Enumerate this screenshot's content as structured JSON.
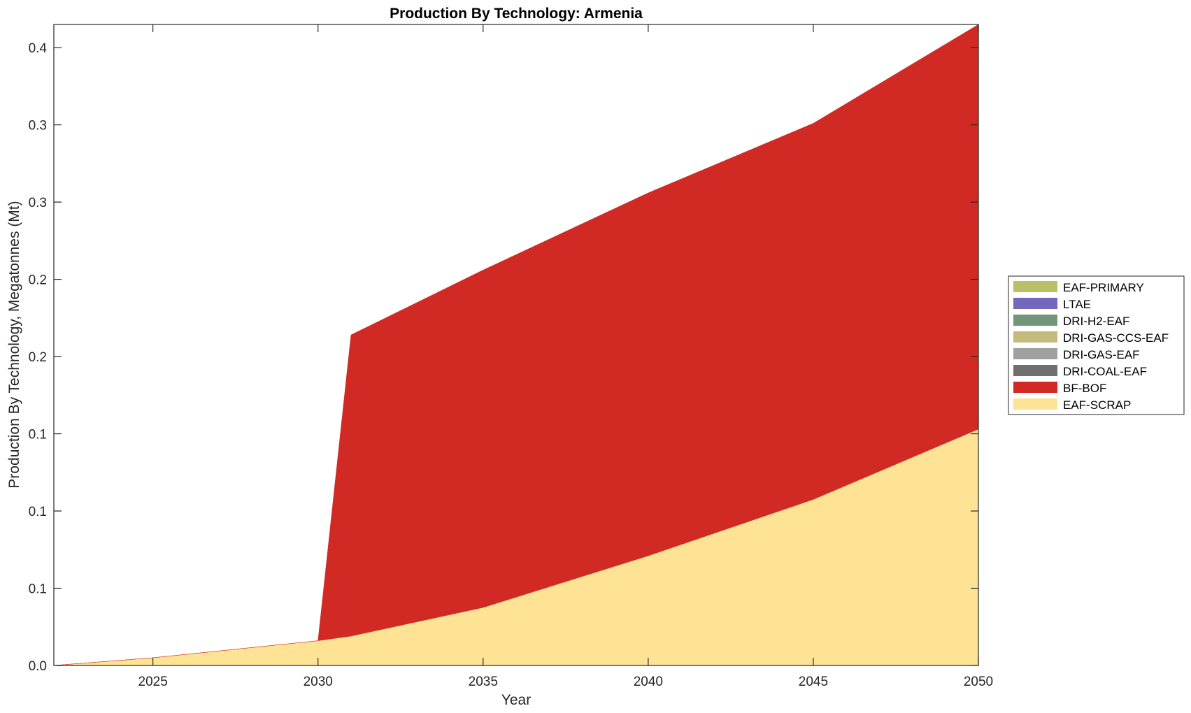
{
  "chart_data": {
    "type": "area",
    "stacked": true,
    "title": "Production By Technology: Armenia",
    "xlabel": "Year",
    "ylabel": "Production By Technology, Megatonnes (Mt)",
    "xlim": [
      2022,
      2050
    ],
    "ylim": [
      0,
      0.415
    ],
    "x_ticks": [
      2025,
      2030,
      2035,
      2040,
      2045,
      2050
    ],
    "y_ticks": [
      0,
      0.05,
      0.1,
      0.15,
      0.2,
      0.25,
      0.3,
      0.35,
      0.4
    ],
    "y_tick_labels": [
      "0.0",
      "0.1",
      "0.1",
      "0.1",
      "0.2",
      "0.2",
      "0.3",
      "0.3",
      "0.4"
    ],
    "legend_position": "right",
    "x": [
      2022,
      2025,
      2030,
      2031,
      2035,
      2040,
      2045,
      2050
    ],
    "series": [
      {
        "name": "EAF-SCRAP",
        "color": "#FFE394",
        "values": [
          0.0,
          0.005,
          0.016,
          0.019,
          0.0375,
          0.071,
          0.1075,
          0.153
        ]
      },
      {
        "name": "BF-BOF",
        "color": "#D12A24",
        "values": [
          0.0,
          0.0,
          0.0,
          0.195,
          0.2185,
          0.235,
          0.2435,
          0.262
        ]
      },
      {
        "name": "DRI-COAL-EAF",
        "color": "#6E6E6E",
        "values": [
          0,
          0,
          0,
          0,
          0,
          0,
          0,
          0
        ]
      },
      {
        "name": "DRI-GAS-EAF",
        "color": "#A0A0A0",
        "values": [
          0,
          0,
          0,
          0,
          0,
          0,
          0,
          0
        ]
      },
      {
        "name": "DRI-GAS-CCS-EAF",
        "color": "#C3BA7C",
        "values": [
          0,
          0,
          0,
          0,
          0,
          0,
          0,
          0
        ]
      },
      {
        "name": "DRI-H2-EAF",
        "color": "#73957A",
        "values": [
          0,
          0,
          0,
          0,
          0,
          0,
          0,
          0
        ]
      },
      {
        "name": "LTAE",
        "color": "#7467BC",
        "values": [
          0,
          0,
          0,
          0,
          0,
          0,
          0,
          0
        ]
      },
      {
        "name": "EAF-PRIMARY",
        "color": "#B9C068",
        "values": [
          0,
          0,
          0,
          0,
          0,
          0,
          0,
          0
        ]
      }
    ],
    "legend_order": [
      "EAF-PRIMARY",
      "LTAE",
      "DRI-H2-EAF",
      "DRI-GAS-CCS-EAF",
      "DRI-GAS-EAF",
      "DRI-COAL-EAF",
      "BF-BOF",
      "EAF-SCRAP"
    ]
  }
}
